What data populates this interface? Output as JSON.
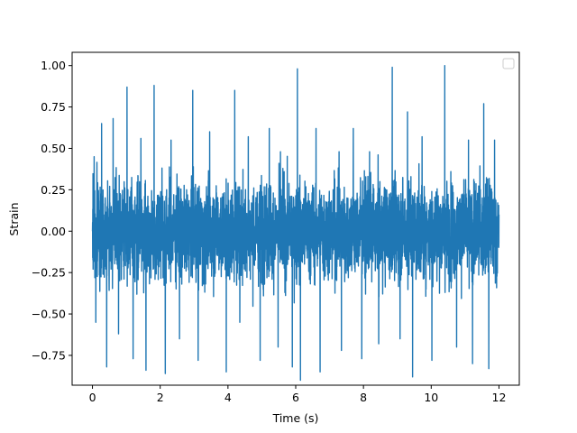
{
  "chart_data": {
    "type": "line",
    "title": "",
    "xlabel": "Time (s)",
    "ylabel": "Strain",
    "xlim": [
      -0.6,
      12.6
    ],
    "ylim": [
      -0.93,
      1.08
    ],
    "x_ticks": [
      0,
      2,
      4,
      6,
      8,
      10,
      12
    ],
    "x_tick_labels": [
      "0",
      "2",
      "4",
      "6",
      "8",
      "10",
      "12"
    ],
    "y_ticks": [
      -0.75,
      -0.5,
      -0.25,
      0.0,
      0.25,
      0.5,
      0.75,
      1.0
    ],
    "y_tick_labels": [
      "−0.75",
      "−0.50",
      "−0.25",
      "0.00",
      "0.25",
      "0.50",
      "0.75",
      "1.00"
    ],
    "grid": false,
    "legend": {
      "placement": "top-right",
      "entries": []
    },
    "series": [
      {
        "color": "#1f77b4",
        "x_range": [
          0,
          12
        ],
        "approx_envelope": {
          "typical_max": 0.45,
          "typical_min": -0.45
        },
        "x": [
          0.0,
          0.05,
          0.1,
          0.27,
          0.42,
          0.61,
          0.77,
          1.02,
          1.2,
          1.43,
          1.58,
          1.82,
          2.15,
          2.32,
          2.57,
          2.96,
          3.12,
          3.46,
          3.95,
          4.2,
          4.35,
          4.6,
          4.95,
          5.22,
          5.48,
          5.55,
          5.9,
          6.05,
          6.14,
          6.6,
          6.72,
          7.28,
          7.35,
          7.7,
          7.95,
          8.18,
          8.45,
          8.85,
          9.08,
          9.3,
          9.45,
          9.73,
          10.02,
          10.4,
          10.75,
          11.1,
          11.22,
          11.55,
          11.7,
          11.87,
          12.0
        ],
        "y": [
          0.0,
          0.45,
          -0.55,
          0.65,
          -0.82,
          0.68,
          -0.62,
          0.87,
          -0.77,
          0.56,
          -0.84,
          0.88,
          -0.86,
          0.55,
          -0.65,
          0.85,
          -0.78,
          0.6,
          -0.85,
          0.85,
          -0.55,
          0.57,
          -0.78,
          0.62,
          -0.7,
          0.48,
          -0.82,
          0.98,
          -0.9,
          0.62,
          -0.85,
          0.48,
          -0.72,
          0.62,
          -0.77,
          0.48,
          -0.68,
          0.99,
          -0.65,
          0.72,
          -0.88,
          0.57,
          -0.78,
          1.0,
          -0.7,
          0.55,
          -0.8,
          0.77,
          -0.83,
          0.55,
          0.1
        ]
      }
    ]
  }
}
